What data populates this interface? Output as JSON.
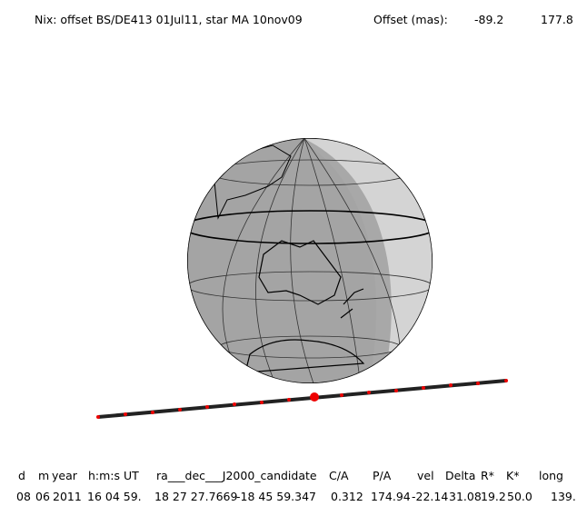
{
  "header": {
    "title": "Nix: offset BS/DE413 01Jul11, star MA 10nov09",
    "offset_label": "Offset (mas):",
    "offset_x": "-89.2",
    "offset_y": "177.8"
  },
  "table": {
    "columns": [
      "d",
      "m",
      "year",
      "h:m:s UT",
      "ra___dec___J2000_candidate",
      "C/A",
      "P/A",
      "vel",
      "Delta",
      "R*",
      "K*",
      "long"
    ],
    "rows": [
      [
        "08",
        "06",
        "2011",
        "16 04 59.",
        "18 27 27.7669",
        "-18 45 59.347",
        "0.312",
        "174.94",
        "-22.14",
        "31.08",
        "19.2",
        "50.0",
        "139."
      ]
    ]
  }
}
